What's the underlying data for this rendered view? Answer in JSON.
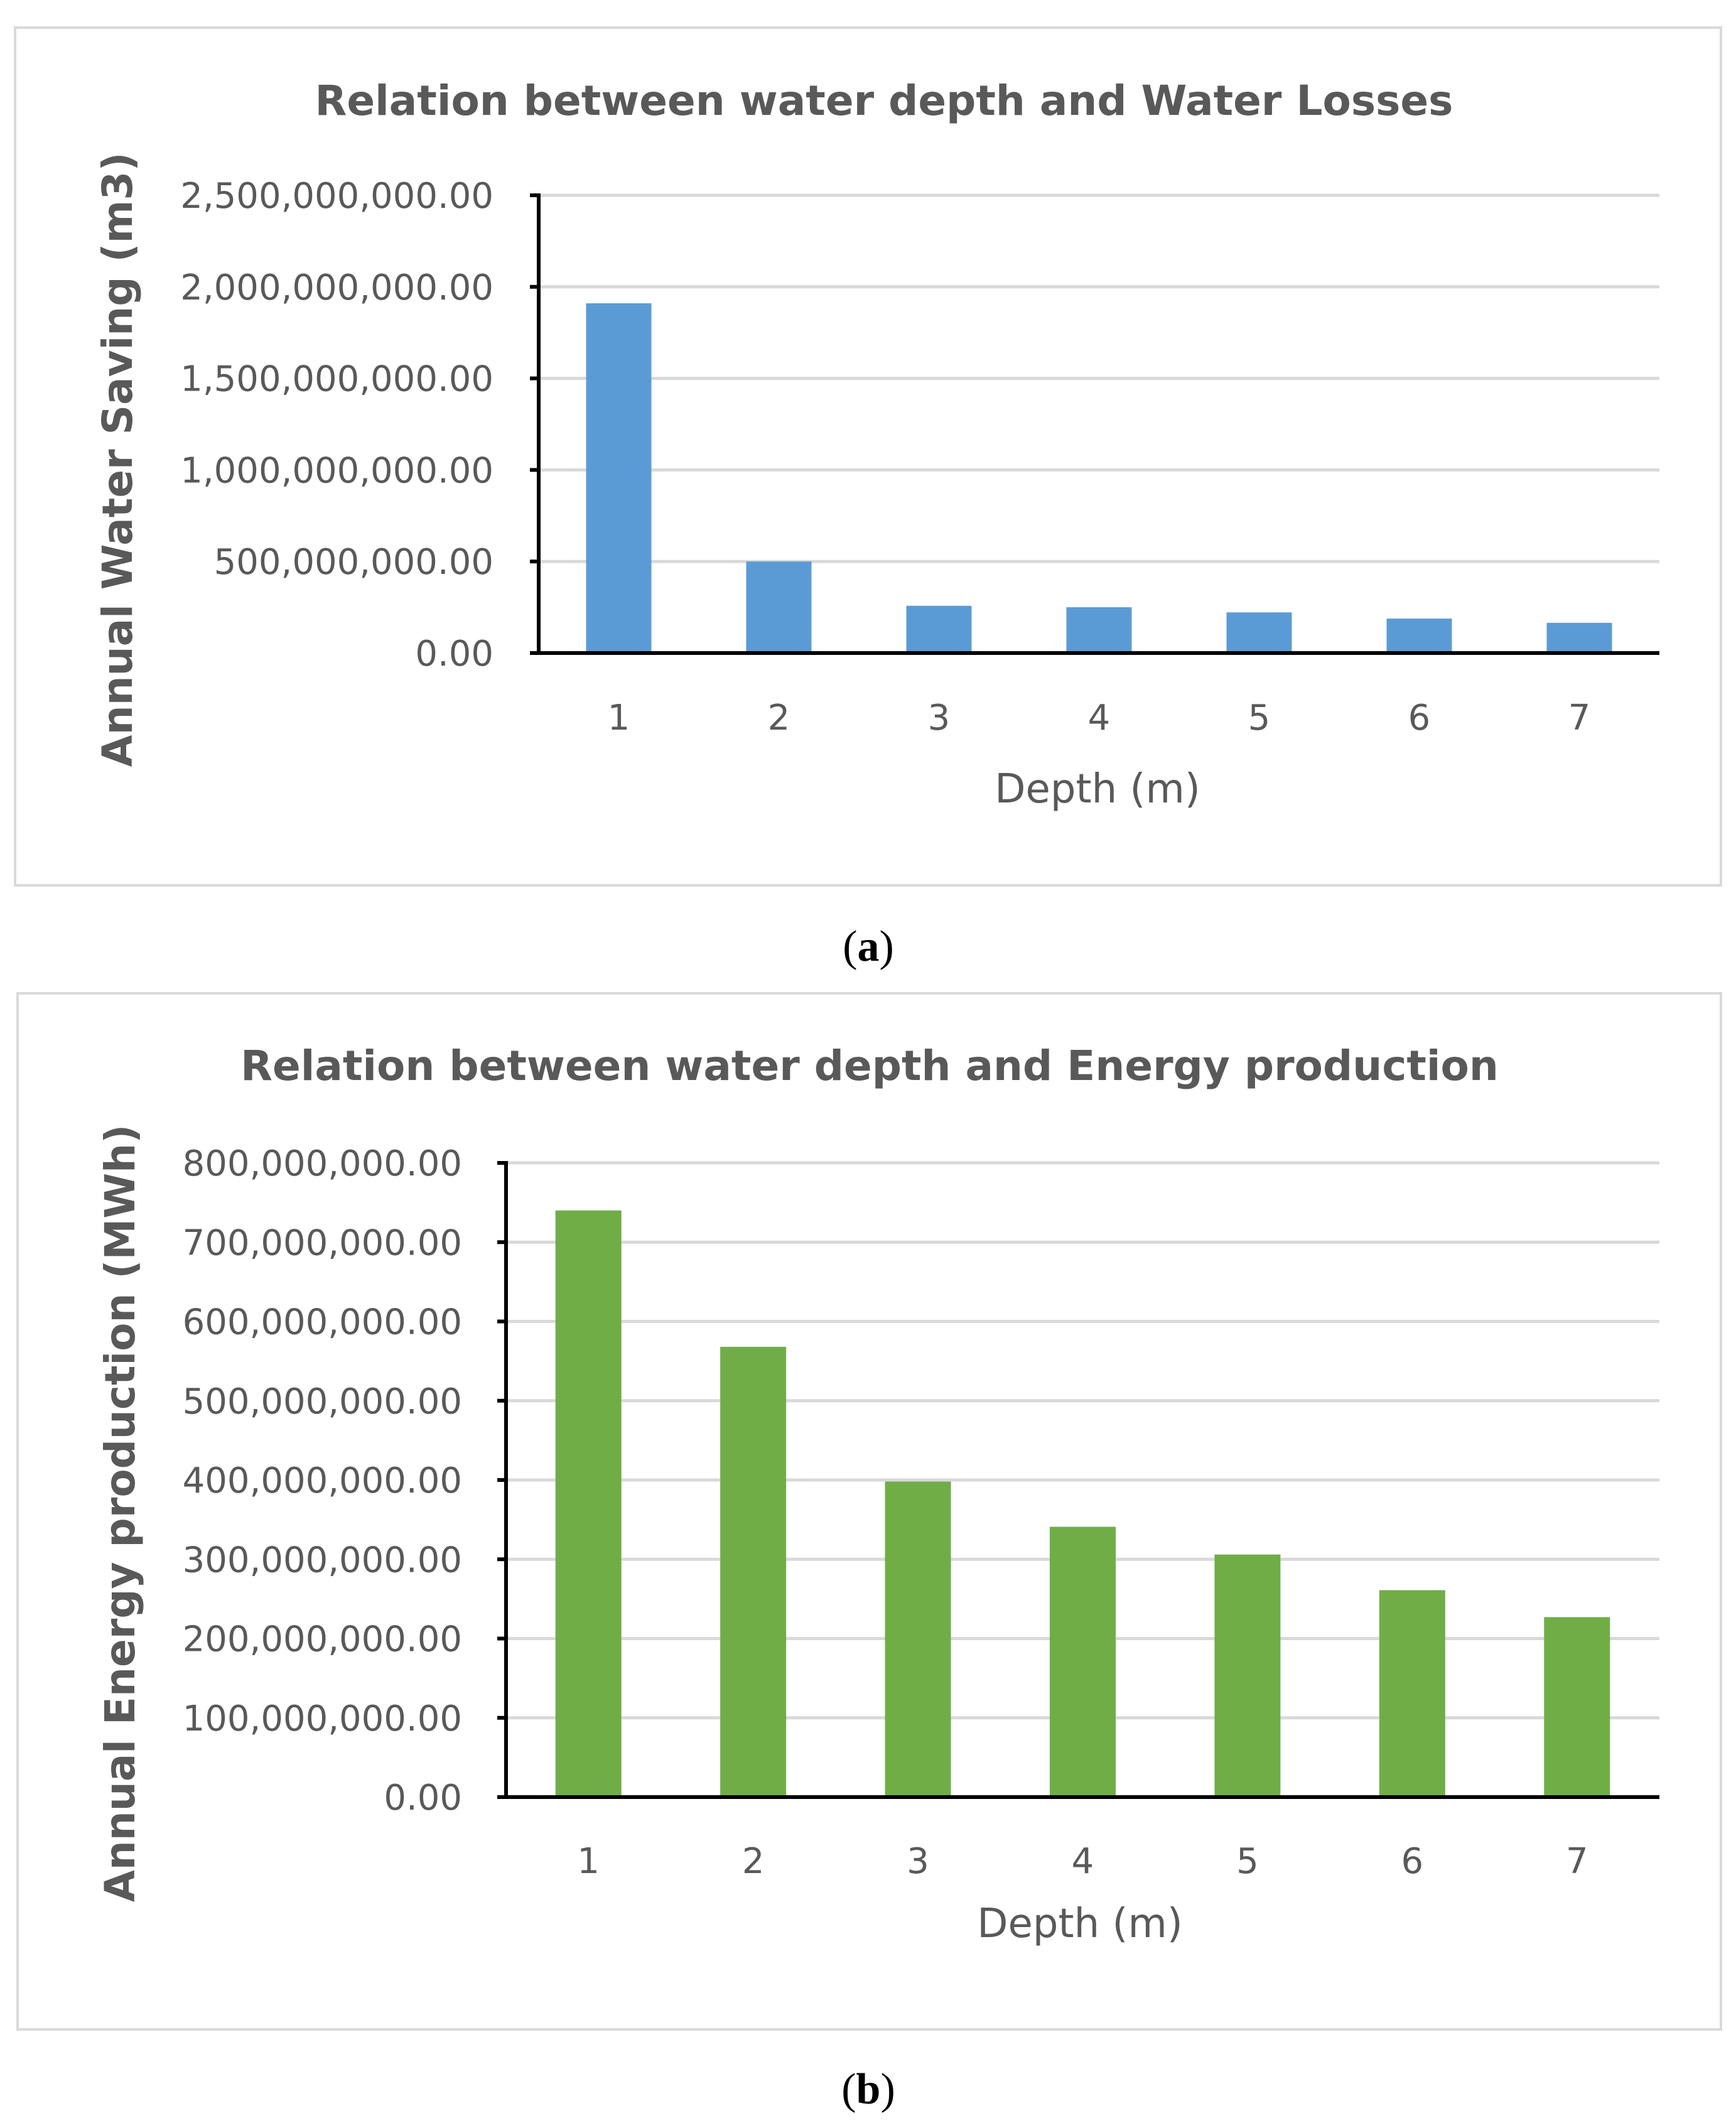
{
  "chart_data": [
    {
      "type": "bar",
      "panel_label": "a",
      "title": "Relation between water depth and Water Losses",
      "xlabel": "Depth (m)",
      "ylabel": "Annual Water Saving (m3)",
      "categories": [
        "1",
        "2",
        "3",
        "4",
        "5",
        "6",
        "7"
      ],
      "values": [
        1910000000,
        500000000,
        258000000,
        250000000,
        222000000,
        188000000,
        165000000
      ],
      "ylim": [
        0,
        2500000000
      ],
      "yticks": [
        0,
        500000000,
        1000000000,
        1500000000,
        2000000000,
        2500000000
      ],
      "ytick_labels": [
        "0.00",
        "500,000,000.00",
        "1,000,000,000.00",
        "1,500,000,000.00",
        "2,000,000,000.00",
        "2,500,000,000.00"
      ],
      "grid": true,
      "legend": "none",
      "bar_color": "#5b9bd5"
    },
    {
      "type": "bar",
      "panel_label": "b",
      "title": "Relation between water depth and Energy production",
      "xlabel": "Depth (m)",
      "ylabel": "Annual Energy production (MWh)",
      "categories": [
        "1",
        "2",
        "3",
        "4",
        "5",
        "6",
        "7"
      ],
      "values": [
        740000000,
        568000000,
        398000000,
        341000000,
        306000000,
        261000000,
        227000000
      ],
      "ylim": [
        0,
        800000000
      ],
      "yticks": [
        0,
        100000000,
        200000000,
        300000000,
        400000000,
        500000000,
        600000000,
        700000000,
        800000000
      ],
      "ytick_labels": [
        "0.00",
        "100,000,000.00",
        "200,000,000.00",
        "300,000,000.00",
        "400,000,000.00",
        "500,000,000.00",
        "600,000,000.00",
        "700,000,000.00",
        "800,000,000.00"
      ],
      "grid": true,
      "legend": "none",
      "bar_color": "#70ad47"
    }
  ]
}
